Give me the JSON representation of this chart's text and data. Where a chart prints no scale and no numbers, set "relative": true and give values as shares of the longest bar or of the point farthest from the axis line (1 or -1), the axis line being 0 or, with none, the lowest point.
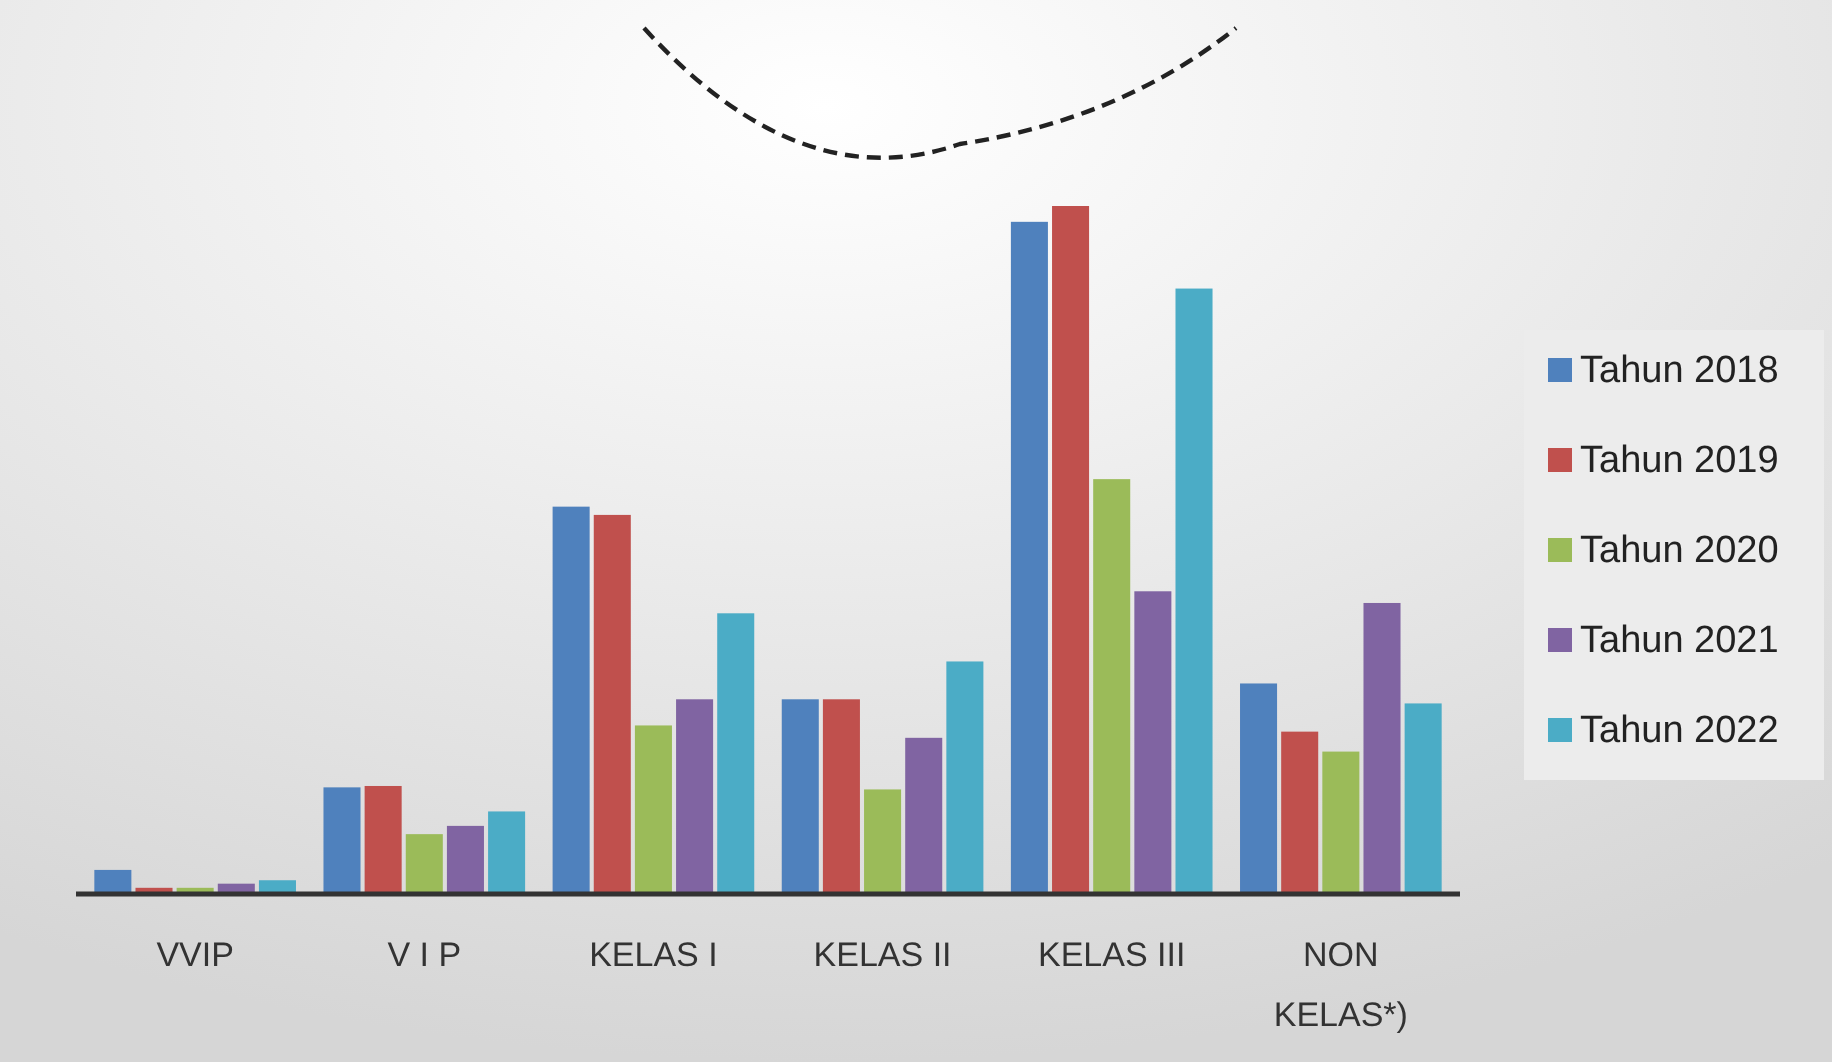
{
  "chart_data": {
    "type": "bar",
    "relative": true,
    "categories": [
      "VVIP",
      "V I P",
      "KELAS I",
      "KELAS II",
      "KELAS III",
      "NON KELAS*)"
    ],
    "legend": "right",
    "series": [
      {
        "name": "Tahun 2018",
        "color": "#4f81bd",
        "values": [
          0.035,
          0.155,
          0.563,
          0.283,
          0.977,
          0.306
        ]
      },
      {
        "name": "Tahun 2019",
        "color": "#c0504d",
        "values": [
          0.009,
          0.157,
          0.551,
          0.283,
          1,
          0.236
        ]
      },
      {
        "name": "Tahun 2020",
        "color": "#9bbb59",
        "values": [
          0.009,
          0.087,
          0.245,
          0.152,
          0.603,
          0.207
        ]
      },
      {
        "name": "Tahun 2021",
        "color": "#8064a2",
        "values": [
          0.015,
          0.099,
          0.283,
          0.227,
          0.44,
          0.423
        ]
      },
      {
        "name": "Tahun 2022",
        "color": "#4bacc6",
        "values": [
          0.02,
          0.12,
          0.408,
          0.338,
          0.88,
          0.277
        ]
      }
    ]
  }
}
